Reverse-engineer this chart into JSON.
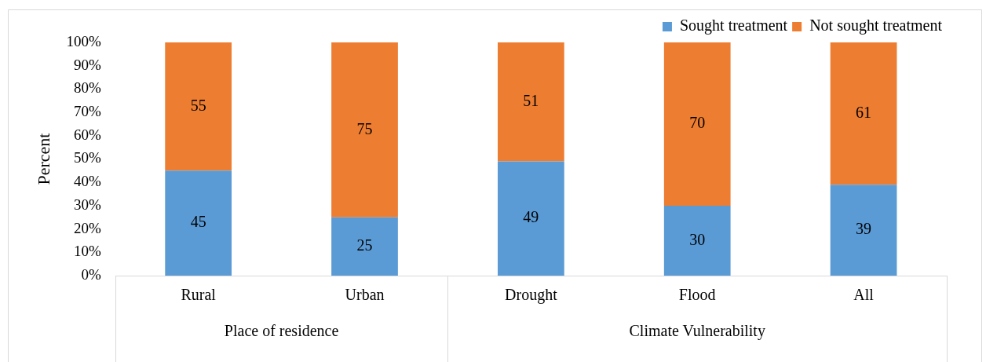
{
  "chart_data": {
    "type": "bar",
    "stacked": true,
    "categories": [
      "Rural",
      "Urban",
      "Drought",
      "Flood",
      "All"
    ],
    "series": [
      {
        "name": "Sought treatment",
        "color": "#5b9bd5",
        "values": [
          45,
          25,
          49,
          30,
          39
        ]
      },
      {
        "name": "Not sought treatment",
        "color": "#ed7d31",
        "values": [
          55,
          75,
          51,
          70,
          61
        ]
      }
    ],
    "ylabel": "Percent",
    "ylim": [
      0,
      100
    ],
    "yticks": [
      {
        "value": 0,
        "label": "0%"
      },
      {
        "value": 10,
        "label": "10%"
      },
      {
        "value": 20,
        "label": "20%"
      },
      {
        "value": 30,
        "label": "30%"
      },
      {
        "value": 40,
        "label": "40%"
      },
      {
        "value": 50,
        "label": "50%"
      },
      {
        "value": 60,
        "label": "60%"
      },
      {
        "value": 70,
        "label": "70%"
      },
      {
        "value": 80,
        "label": "80%"
      },
      {
        "value": 90,
        "label": "90%"
      },
      {
        "value": 100,
        "label": "100%"
      }
    ],
    "annotations": [
      "Place of residence",
      "Climate Vulnerability"
    ],
    "data_labels": true,
    "legend": "top right",
    "grid": false
  }
}
